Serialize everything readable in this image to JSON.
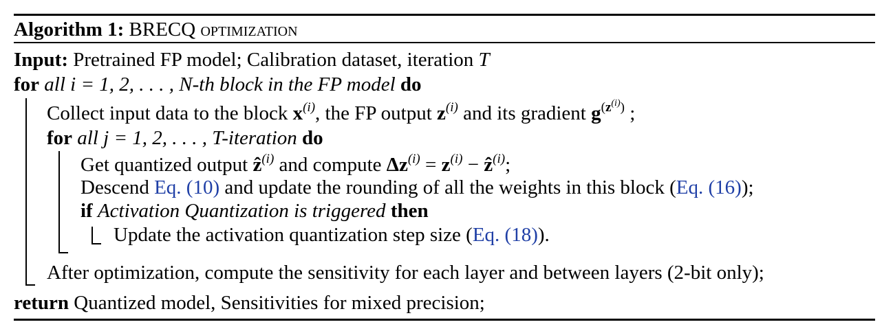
{
  "algorithm": {
    "caption_label": "Algorithm 1:",
    "caption_title": "BRECQ optimization",
    "input": {
      "keyword": "Input:",
      "text": "Pretrained FP model; Calibration dataset, iteration",
      "var": "T"
    },
    "for_outer": {
      "keyword": "for",
      "condition": "all i = 1, 2, . . . , N-th block in the FP model",
      "do": "do"
    },
    "collect": {
      "text1": "Collect input data to the block",
      "x": "x",
      "sup_i": "(i)",
      "text2": ", the FP output",
      "z": "z",
      "text3": "and its gradient",
      "g": "g",
      "g_sup_open": "(",
      "g_sup_z": "z",
      "g_sup_close": ")",
      "end": ";"
    },
    "for_inner": {
      "keyword": "for",
      "condition": "all j = 1, 2, . . . , T-iteration",
      "do": "do"
    },
    "get": {
      "text1": "Get quantized output",
      "zhat": "ẑ",
      "text2": "and compute",
      "delta": "Δz",
      "eq": " = ",
      "z": "z",
      "minus": " − ",
      "end": ";"
    },
    "descend": {
      "text1": "Descend",
      "ref1": "Eq. (10)",
      "text2": "and update the rounding of all the weights in this block",
      "open": "(",
      "ref2": "Eq. (16)",
      "close": ");"
    },
    "if": {
      "keyword": "if",
      "condition": "Activation Quantization is triggered",
      "then": "then"
    },
    "update": {
      "text": "Update the activation quantization step size",
      "open": "(",
      "ref": "Eq. (18)",
      "close": ")."
    },
    "after": {
      "text": "After optimization, compute the sensitivity for each layer and between layers (2-bit only);"
    },
    "return": {
      "keyword": "return",
      "text": "Quantized model, Sensitivities for mixed precision;"
    }
  }
}
